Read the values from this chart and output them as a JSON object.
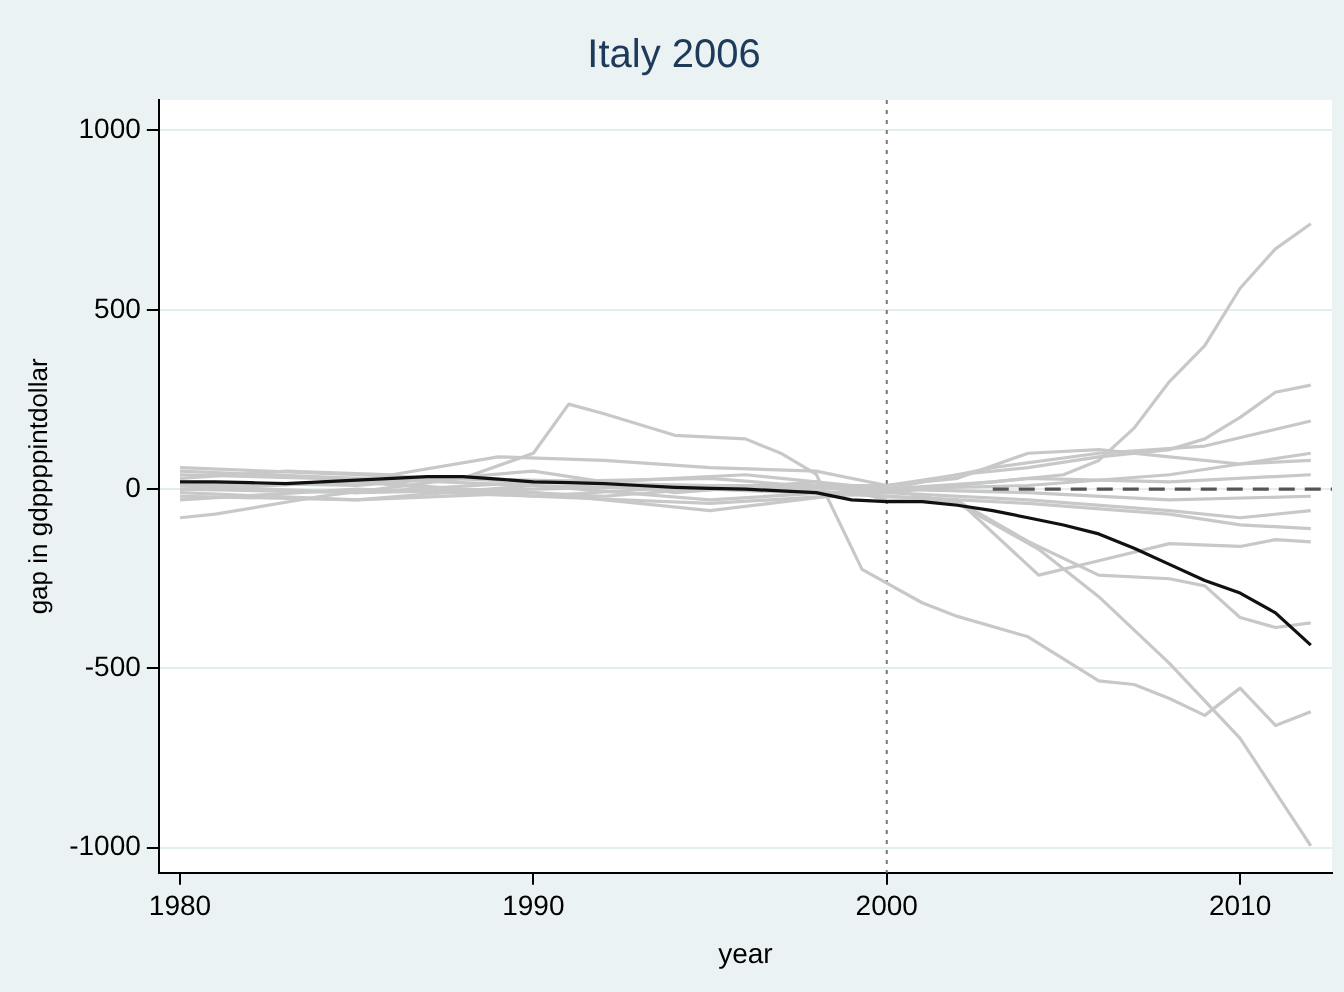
{
  "chart_data": {
    "type": "line",
    "title": "Italy 2006",
    "xlabel": "year",
    "ylabel": "gap in gdppppintdollar",
    "xlim": [
      1979.4,
      2012.6
    ],
    "xticks": [
      1980,
      1990,
      2000,
      2010
    ],
    "ylim": [
      -1070,
      1085
    ],
    "yticks": [
      -1000,
      -500,
      0,
      500,
      1000
    ],
    "grid": "y",
    "legend": false,
    "marker": "none",
    "line_style": "solid",
    "ref_lines": [
      {
        "axis": "x",
        "value": 2000,
        "color": "#777777",
        "line_style": "dotted"
      }
    ],
    "series": [
      {
        "color": "#c8c8c8",
        "x": [
          1980,
          1985,
          1990,
          1995,
          2000,
          2003,
          2005,
          2006,
          2007,
          2008,
          2009,
          2010,
          2011,
          2012
        ],
        "values": [
          10,
          -10,
          0,
          10,
          0,
          20,
          40,
          80,
          170,
          300,
          400,
          560,
          670,
          740
        ]
      },
      {
        "color": "#c8c8c8",
        "x": [
          1980,
          1985,
          1990,
          1995,
          2000,
          2002,
          2004,
          2006,
          2008,
          2009,
          2010,
          2011,
          2012
        ],
        "values": [
          -30,
          0,
          -20,
          10,
          10,
          40,
          60,
          90,
          110,
          140,
          200,
          270,
          290
        ]
      },
      {
        "color": "#c8c8c8",
        "x": [
          1980,
          1985,
          1990,
          1995,
          2000,
          2003,
          2006,
          2009,
          2012
        ],
        "values": [
          50,
          30,
          10,
          -30,
          0,
          60,
          100,
          120,
          190
        ]
      },
      {
        "color": "#c8c8c8",
        "x": [
          1980,
          1983,
          1986,
          1989,
          1992,
          1995,
          1998,
          2000,
          2002,
          2004,
          2006,
          2008,
          2010,
          2012
        ],
        "values": [
          30,
          50,
          40,
          90,
          80,
          60,
          50,
          10,
          30,
          100,
          110,
          90,
          70,
          100
        ]
      },
      {
        "color": "#c8c8c8",
        "x": [
          1980,
          1981,
          1984,
          1988,
          1992,
          1996,
          2000,
          2004,
          2008,
          2010,
          2012
        ],
        "values": [
          -80,
          -70,
          -20,
          30,
          20,
          40,
          0,
          10,
          40,
          70,
          80
        ]
      },
      {
        "color": "#c8c8c8",
        "x": [
          1980,
          1985,
          1990,
          1995,
          2000,
          2004,
          2008,
          2012
        ],
        "values": [
          60,
          40,
          20,
          30,
          -10,
          30,
          20,
          40
        ]
      },
      {
        "color": "#c8c8c8",
        "x": [
          1980,
          1985,
          1990,
          1995,
          2000,
          2004,
          2008,
          2010,
          2012
        ],
        "values": [
          0,
          20,
          -20,
          -40,
          -10,
          -30,
          -60,
          -80,
          -60
        ]
      },
      {
        "color": "#c8c8c8",
        "x": [
          1980,
          1985,
          1990,
          1995,
          2000,
          2004,
          2008,
          2010,
          2012
        ],
        "values": [
          -20,
          -30,
          10,
          0,
          -20,
          -40,
          -70,
          -100,
          -110
        ]
      },
      {
        "color": "#c8c8c8",
        "x": [
          1980,
          1985,
          1990,
          1995,
          2000,
          2004,
          2008,
          2012
        ],
        "values": [
          -10,
          -30,
          -10,
          -60,
          0,
          -10,
          -30,
          -20
        ]
      },
      {
        "color": "#c8c8c8",
        "x": [
          1980,
          1984,
          1988,
          1992,
          1996,
          2000,
          2002,
          2004.3,
          2006,
          2008,
          2010,
          2011,
          2012
        ],
        "values": [
          40,
          30,
          0,
          -20,
          10,
          -20,
          -30,
          -240,
          -200,
          -152,
          -160,
          -141,
          -147
        ]
      },
      {
        "color": "#c8c8c8",
        "x": [
          1980,
          1985,
          1990,
          1994,
          1998,
          2000,
          2002,
          2004,
          2006,
          2008,
          2009,
          2010,
          2011,
          2012
        ],
        "values": [
          20,
          10,
          50,
          -10,
          20,
          -30,
          -33,
          -146,
          -240,
          -250,
          -270,
          -358,
          -386,
          -373
        ]
      },
      {
        "color": "#c8c8c8",
        "x": [
          1980,
          1985,
          1990,
          1995,
          2000,
          2002,
          2004.3,
          2006,
          2008,
          2010,
          2012
        ],
        "values": [
          0,
          -10,
          20,
          10,
          0,
          -40,
          -168,
          -300,
          -486,
          -695,
          -995
        ]
      },
      {
        "color": "#c8c8c8",
        "x": [
          1980,
          1985,
          1988,
          1990,
          1991,
          1992,
          1994,
          1996,
          1997,
          1998,
          1999.3,
          2001,
          2002,
          2004,
          2006,
          2007,
          2008,
          2009,
          2010,
          2011,
          2012
        ],
        "values": [
          10,
          20,
          30,
          100,
          237,
          210,
          150,
          140,
          100,
          42,
          -224,
          -317,
          -355,
          -412,
          -535,
          -545,
          -584,
          -631,
          -555,
          -659,
          -621
        ]
      },
      {
        "color": "#555555",
        "line_style": "dashed",
        "x": [
          2003,
          2012.6
        ],
        "values": [
          0,
          0
        ]
      },
      {
        "color": "#111111",
        "x": [
          1980,
          1981,
          1982,
          1983,
          1984,
          1985,
          1986,
          1987,
          1988,
          1989,
          1990,
          1991,
          1992,
          1993,
          1994,
          1995,
          1996,
          1997,
          1998,
          1999,
          2000,
          2001,
          2002,
          2003,
          2004,
          2005,
          2006,
          2007,
          2008,
          2009,
          2010,
          2011,
          2012
        ],
        "values": [
          20,
          20,
          18,
          15,
          20,
          25,
          30,
          35,
          35,
          28,
          20,
          18,
          15,
          10,
          5,
          2,
          0,
          -5,
          -10,
          -30,
          -35,
          -35,
          -45,
          -60,
          -80,
          -100,
          -125,
          -165,
          -210,
          -255,
          -290,
          -345,
          -435
        ]
      }
    ]
  }
}
